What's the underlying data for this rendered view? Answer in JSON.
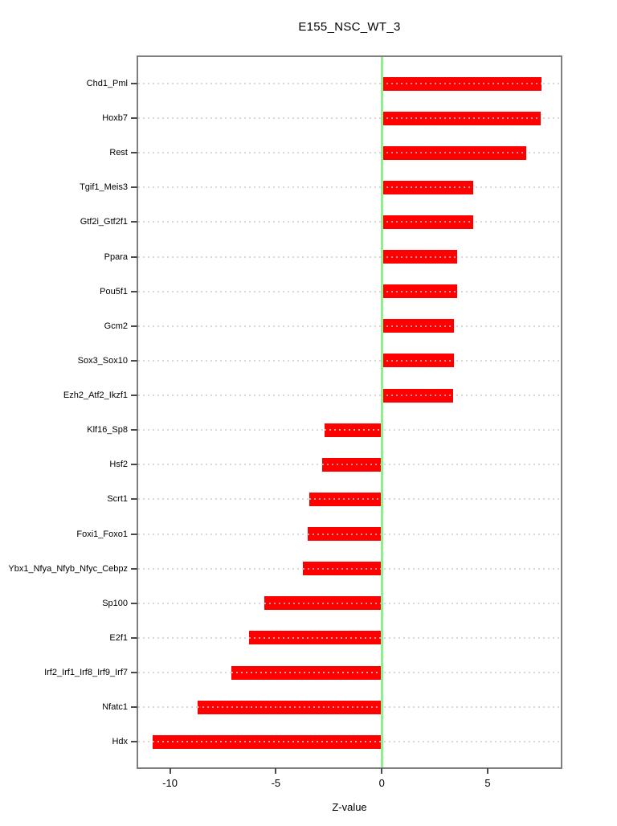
{
  "chart_data": {
    "type": "bar",
    "orientation": "horizontal",
    "title": "E155_NSC_WT_3",
    "xlabel": "Z-value",
    "ylabel": "",
    "categories": [
      "Chd1_Pml",
      "Hoxb7",
      "Rest",
      "Tgif1_Meis3",
      "Gtf2i_Gtf2f1",
      "Ppara",
      "Pou5f1",
      "Gcm2",
      "Sox3_Sox10",
      "Ezh2_Atf2_Ikzf1",
      "Klf16_Sp8",
      "Hsf2",
      "Scrt1",
      "Foxi1_Foxo1",
      "Ybx1_Nfya_Nfyb_Nfyc_Cebpz",
      "Sp100",
      "E2f1",
      "Irf2_Irf1_Irf8_Irf9_Irf7",
      "Nfatc1",
      "Hdx"
    ],
    "values": [
      7.55,
      7.52,
      6.83,
      4.33,
      4.31,
      3.57,
      3.54,
      3.4,
      3.39,
      3.38,
      -2.69,
      -2.8,
      -3.42,
      -3.49,
      -3.71,
      -5.56,
      -6.27,
      -7.09,
      -8.71,
      -10.83
    ],
    "xlim": [
      -11.5,
      8.45
    ],
    "xticks": [
      -10,
      -5,
      0,
      5
    ],
    "xtick_labels": [
      "-10",
      "-5",
      "0",
      "5"
    ],
    "grid": "dotted horizontal line per category, drawn across full plot width",
    "legend": "none",
    "colors": {
      "bar": "#ff0000",
      "zero_line": "#90ee90",
      "grid": "#d8d8d8",
      "plot_border": "#7f7f7f",
      "text": "#000000"
    }
  }
}
